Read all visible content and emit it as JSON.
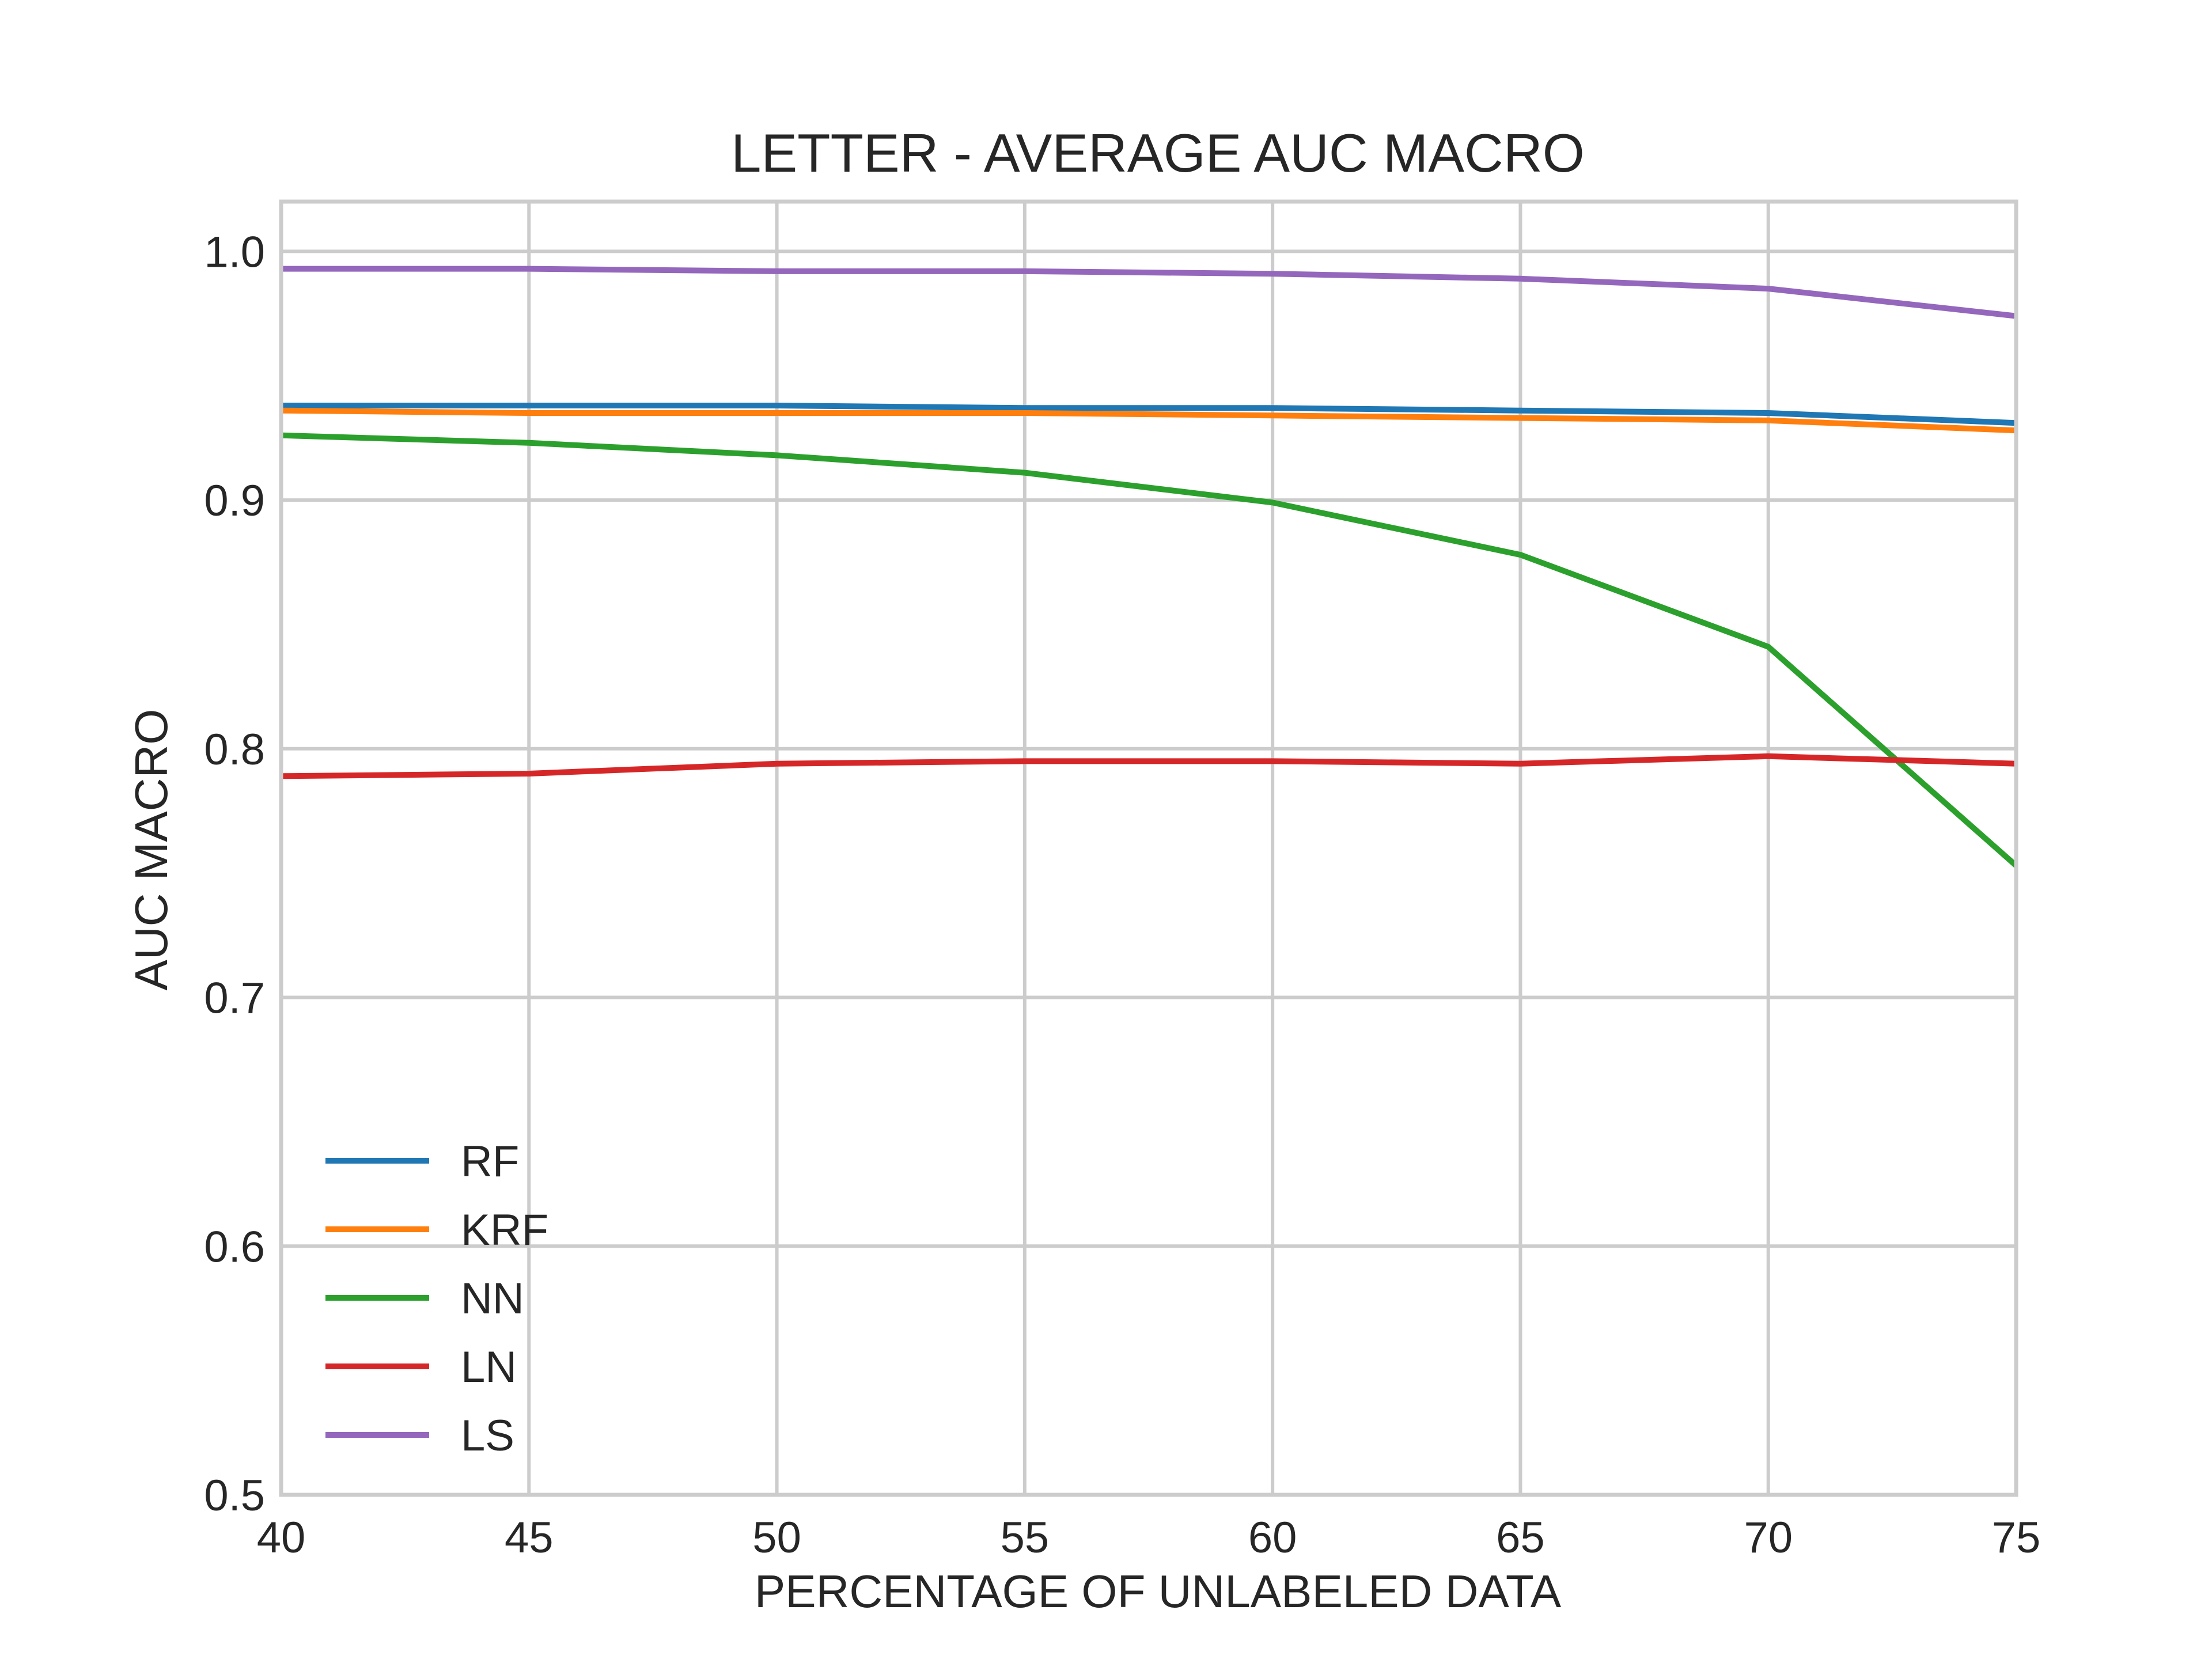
{
  "chart_data": {
    "type": "line",
    "title": "LETTER - AVERAGE AUC MACRO",
    "xlabel": "PERCENTAGE OF UNLABELED DATA",
    "ylabel": "AUC MACRO",
    "xlim": [
      40,
      75
    ],
    "ylim": [
      0.5,
      1.02
    ],
    "x": [
      40,
      45,
      50,
      55,
      60,
      65,
      70,
      75
    ],
    "x_ticks": [
      40,
      45,
      50,
      55,
      60,
      65,
      70,
      75
    ],
    "x_tick_labels": [
      "40",
      "45",
      "50",
      "55",
      "60",
      "65",
      "70",
      "75"
    ],
    "y_ticks": [
      0.5,
      0.6,
      0.7,
      0.8,
      0.9,
      1.0
    ],
    "y_tick_labels": [
      "0.5",
      "0.6",
      "0.7",
      "0.8",
      "0.9",
      "1.0"
    ],
    "grid": true,
    "legend_position": "lower-left",
    "series": [
      {
        "name": "RF",
        "color": "#1f77b4",
        "values": [
          0.938,
          0.938,
          0.938,
          0.937,
          0.937,
          0.936,
          0.935,
          0.931
        ]
      },
      {
        "name": "KRF",
        "color": "#ff7f0e",
        "values": [
          0.936,
          0.935,
          0.935,
          0.935,
          0.934,
          0.933,
          0.932,
          0.928
        ]
      },
      {
        "name": "NN",
        "color": "#2ca02c",
        "values": [
          0.926,
          0.923,
          0.918,
          0.911,
          0.899,
          0.878,
          0.841,
          0.753
        ]
      },
      {
        "name": "LN",
        "color": "#d62728",
        "values": [
          0.789,
          0.79,
          0.794,
          0.795,
          0.795,
          0.794,
          0.797,
          0.794
        ]
      },
      {
        "name": "LS",
        "color": "#9467bd",
        "values": [
          0.993,
          0.993,
          0.992,
          0.992,
          0.991,
          0.989,
          0.985,
          0.974
        ]
      }
    ]
  }
}
